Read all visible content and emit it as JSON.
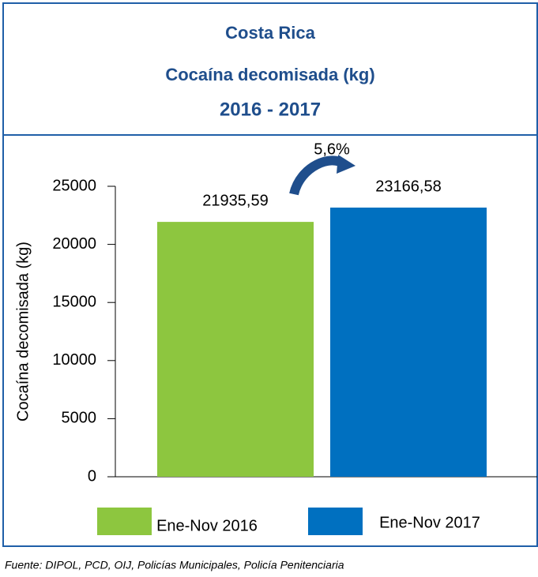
{
  "chart_data": {
    "type": "bar",
    "title": "Costa Rica",
    "subtitle": "Cocaína decomisada (kg)",
    "period": "2016 - 2017",
    "y_label": "Cocaína decomisada (kg)",
    "categories": [
      "Ene-Nov 2016",
      "Ene-Nov 2017"
    ],
    "values": [
      21935.59,
      23166.58
    ],
    "value_labels": [
      "21935,59",
      "23166,58"
    ],
    "colors": [
      "#8dc63f",
      "#0070c0"
    ],
    "annotation": "5,6%",
    "ylim": [
      0,
      25000
    ],
    "yticks": [
      0,
      5000,
      10000,
      15000,
      20000,
      25000
    ],
    "source": "Fuente: DIPOL, PCD, OIJ, Policías Municipales, Policía Penitenciaria"
  }
}
